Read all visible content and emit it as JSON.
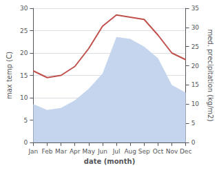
{
  "chart_data": {
    "type": "line",
    "xlabel": "date (month)",
    "ylabel": "max temp (C)",
    "y2label": "med. precipitation (kg/m2)",
    "categories": [
      "Jan",
      "Feb",
      "Mar",
      "Apr",
      "May",
      "Jun",
      "Jul",
      "Aug",
      "Sep",
      "Oct",
      "Nov",
      "Dec"
    ],
    "series": [
      {
        "type": "area",
        "axis": "y2",
        "color": "#c5d5ee",
        "values": [
          10,
          8.5,
          9,
          11,
          14,
          18,
          27.5,
          27,
          25,
          22,
          15,
          13
        ]
      },
      {
        "type": "line",
        "color": "#c0504d",
        "values": [
          16,
          14.5,
          15,
          17,
          21,
          26,
          28.5,
          28,
          27.5,
          24,
          20,
          18.5
        ]
      }
    ],
    "ylim": [
      0,
      30
    ],
    "yticks": [
      0,
      5,
      10,
      15,
      20,
      25,
      30
    ],
    "y2lim": [
      0,
      35
    ],
    "y2ticks": [
      0,
      5,
      10,
      15,
      20,
      25,
      30,
      35
    ],
    "grid": true
  }
}
